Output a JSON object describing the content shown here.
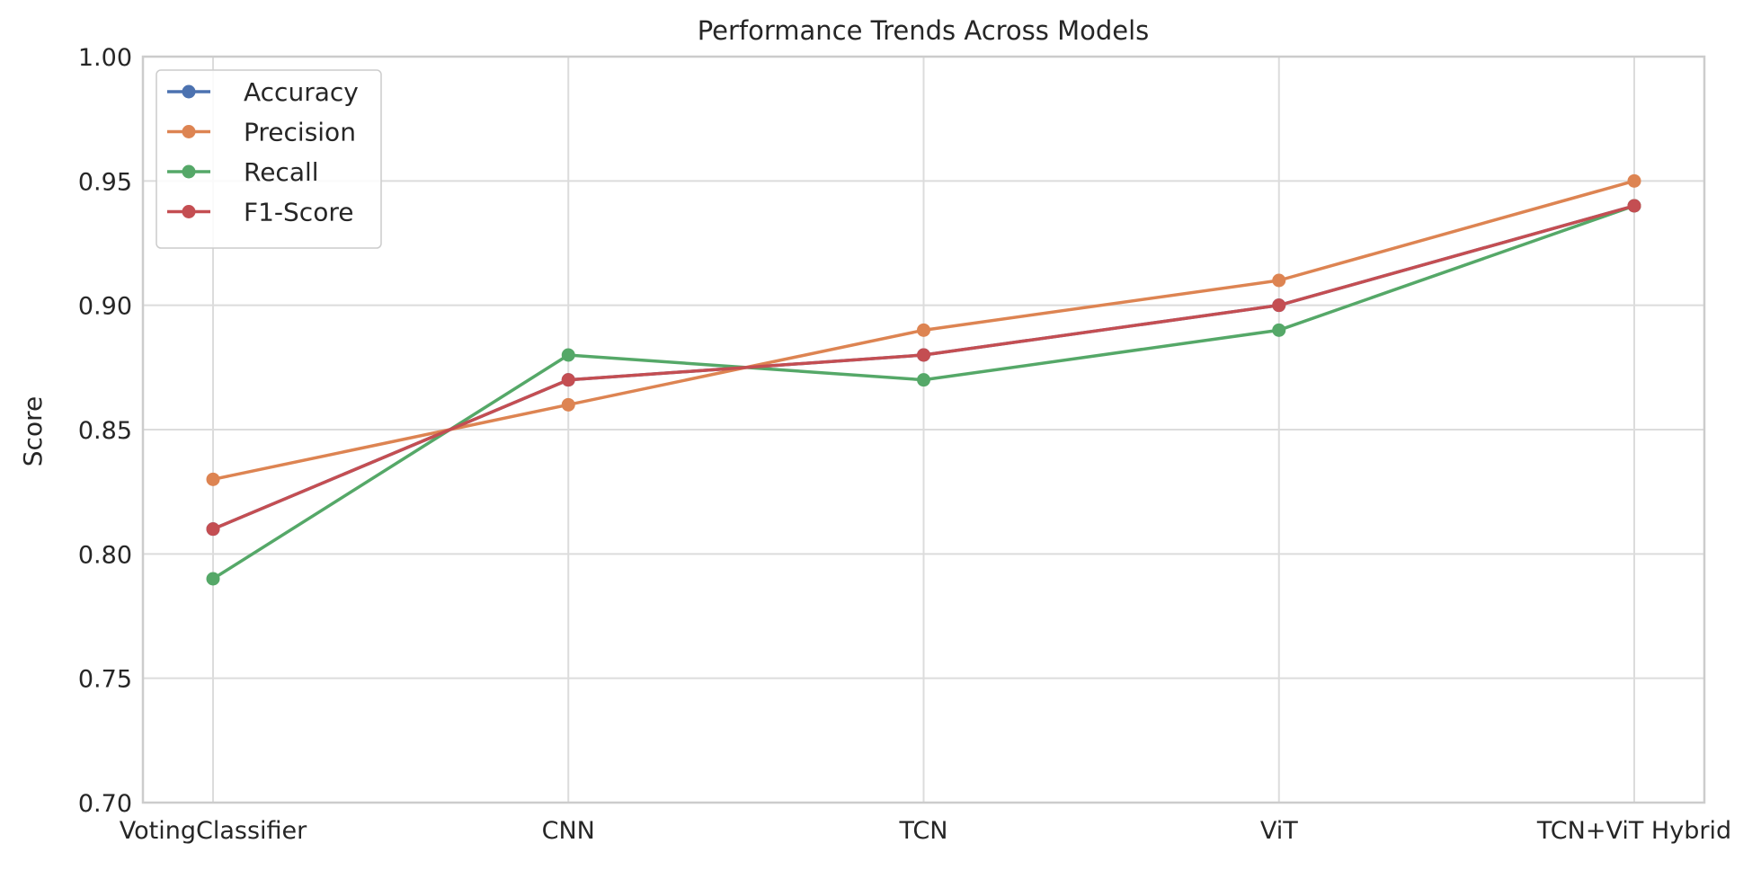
{
  "chart_data": {
    "type": "line",
    "title": "Performance Trends Across Models",
    "xlabel": "",
    "ylabel": "Score",
    "categories": [
      "VotingClassifier",
      "CNN",
      "TCN",
      "ViT",
      "TCN+ViT Hybrid"
    ],
    "ylim": [
      0.7,
      1.0
    ],
    "yticks": [
      "0.70",
      "0.75",
      "0.80",
      "0.85",
      "0.90",
      "0.95",
      "1.00"
    ],
    "grid": true,
    "legend_position": "top-left",
    "series": [
      {
        "name": "Accuracy",
        "color": "#4c72b0",
        "values": [
          0.81,
          0.87,
          0.88,
          0.9,
          0.94
        ]
      },
      {
        "name": "Precision",
        "color": "#dd8452",
        "values": [
          0.83,
          0.86,
          0.89,
          0.91,
          0.95
        ]
      },
      {
        "name": "Recall",
        "color": "#55a868",
        "values": [
          0.79,
          0.88,
          0.87,
          0.89,
          0.94
        ]
      },
      {
        "name": "F1-Score",
        "color": "#c44e52",
        "values": [
          0.81,
          0.87,
          0.88,
          0.9,
          0.94
        ]
      }
    ]
  }
}
